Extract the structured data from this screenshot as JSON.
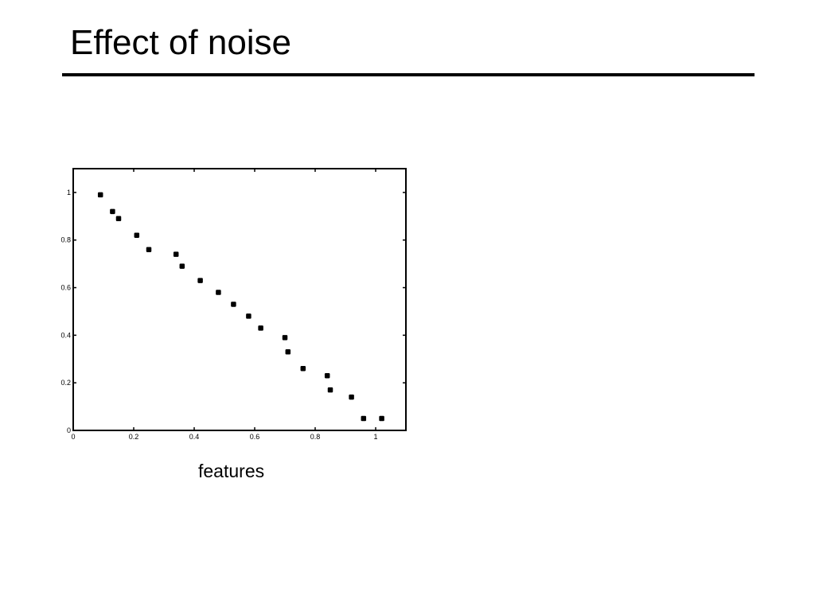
{
  "slide": {
    "title": "Effect of noise",
    "caption": "features"
  },
  "chart_data": {
    "type": "scatter",
    "title": "",
    "xlabel": "",
    "ylabel": "",
    "xlim": [
      0,
      1.1
    ],
    "ylim": [
      0,
      1.1
    ],
    "grid": false,
    "xticks": [
      0,
      0.2,
      0.4,
      0.6,
      0.8,
      1
    ],
    "xtick_labels": [
      "0",
      "0.2",
      "0.4",
      "0.6",
      "0.8",
      "1"
    ],
    "yticks": [
      0,
      0.2,
      0.4,
      0.6,
      0.8,
      1
    ],
    "ytick_labels": [
      "0",
      "0.2",
      "0.4",
      "0.6",
      "0.8",
      "1"
    ],
    "marker_color": "#000000",
    "points": [
      {
        "x": 0.09,
        "y": 0.99
      },
      {
        "x": 0.13,
        "y": 0.92
      },
      {
        "x": 0.15,
        "y": 0.89
      },
      {
        "x": 0.21,
        "y": 0.82
      },
      {
        "x": 0.25,
        "y": 0.76
      },
      {
        "x": 0.34,
        "y": 0.74
      },
      {
        "x": 0.36,
        "y": 0.69
      },
      {
        "x": 0.42,
        "y": 0.63
      },
      {
        "x": 0.48,
        "y": 0.58
      },
      {
        "x": 0.53,
        "y": 0.53
      },
      {
        "x": 0.58,
        "y": 0.48
      },
      {
        "x": 0.62,
        "y": 0.43
      },
      {
        "x": 0.7,
        "y": 0.39
      },
      {
        "x": 0.71,
        "y": 0.33
      },
      {
        "x": 0.76,
        "y": 0.26
      },
      {
        "x": 0.84,
        "y": 0.23
      },
      {
        "x": 0.85,
        "y": 0.17
      },
      {
        "x": 0.92,
        "y": 0.14
      },
      {
        "x": 0.96,
        "y": 0.05
      },
      {
        "x": 1.02,
        "y": 0.05
      }
    ]
  }
}
